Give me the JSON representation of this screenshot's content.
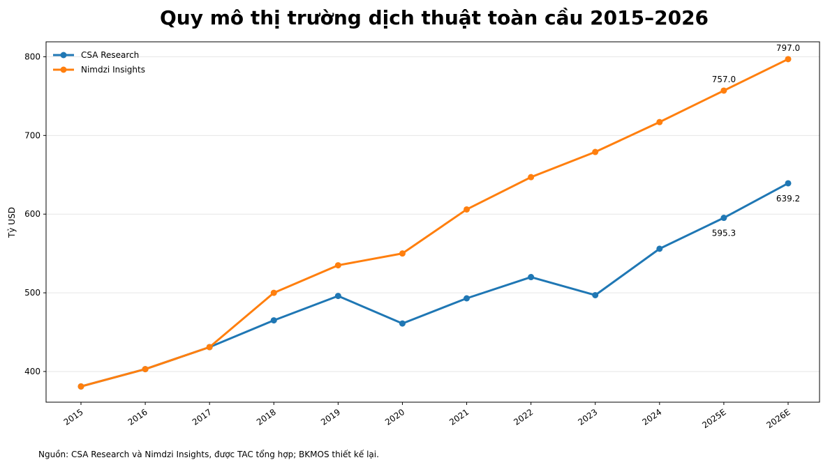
{
  "chart_data": {
    "type": "line",
    "title": "Quy mô thị trường dịch thuật toàn cầu 2015–2026",
    "xlabel": "",
    "ylabel": "Tỷ USD",
    "categories": [
      "2015",
      "2016",
      "2017",
      "2018",
      "2019",
      "2020",
      "2021",
      "2022",
      "2023",
      "2024",
      "2025E",
      "2026E"
    ],
    "series": [
      {
        "name": "CSA Research",
        "color": "#1f77b4",
        "values": [
          381,
          403,
          431,
          465,
          496,
          461,
          493,
          520,
          497,
          556,
          595.3,
          639.2
        ]
      },
      {
        "name": "Nimdzi Insights",
        "color": "#ff7f0e",
        "values": [
          381,
          403,
          431,
          500,
          535,
          550,
          606,
          647,
          679,
          717,
          757.0,
          797.0
        ]
      }
    ],
    "annotations": [
      {
        "series": 0,
        "index": 10,
        "text": "595.3",
        "position": "below"
      },
      {
        "series": 0,
        "index": 11,
        "text": "639.2",
        "position": "below"
      },
      {
        "series": 1,
        "index": 10,
        "text": "757.0",
        "position": "above"
      },
      {
        "series": 1,
        "index": 11,
        "text": "797.0",
        "position": "above"
      }
    ],
    "yticks": [
      400,
      500,
      600,
      700,
      800
    ],
    "ylim": [
      361,
      819
    ],
    "grid": "y",
    "legend_position": "top-left"
  },
  "source_note": "Nguồn: CSA Research và Nimdzi Insights, được TAC tổng hợp; BKMOS thiết kế lại."
}
